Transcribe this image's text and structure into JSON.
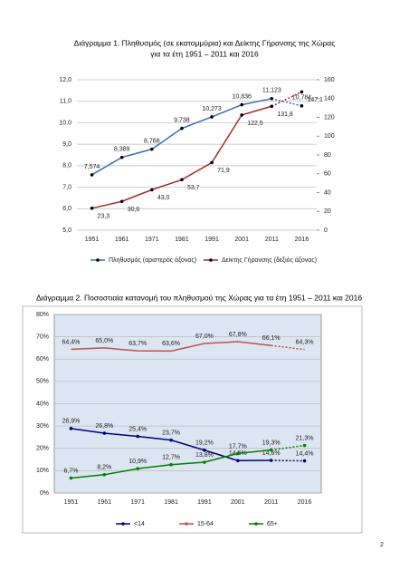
{
  "chart_data": [
    {
      "type": "line",
      "title": [
        "Διάγραμμα 1. Πληθυσμός (σε εκατομμύρια) και Δείκτης Γήρανσης της Χώρας",
        "για τα έτη 1951 – 2011 και 2016"
      ],
      "categories": [
        "1951",
        "1961",
        "1971",
        "1981",
        "1991",
        "2001",
        "2011",
        "2016"
      ],
      "ylim": [
        5,
        12
      ],
      "yticks": [
        {
          "value": 5,
          "label": "5,0"
        },
        {
          "value": 6,
          "label": "6,0"
        },
        {
          "value": 7,
          "label": "7,0"
        },
        {
          "value": 8,
          "label": "8,0"
        },
        {
          "value": 9,
          "label": "9,0"
        },
        {
          "value": 10,
          "label": "10,0"
        },
        {
          "value": 11,
          "label": "11,0"
        },
        {
          "value": 12,
          "label": "12,0"
        }
      ],
      "y2lim": [
        0,
        160
      ],
      "y2ticks": [
        0,
        20,
        40,
        60,
        80,
        100,
        120,
        140,
        160
      ],
      "grid": true,
      "dashed_last_segment": true,
      "legend": "bottom",
      "series": [
        {
          "name": "Πληθυσμός (αριστερός άξονας)",
          "color": "#3d6fb0",
          "values": [
            7.574,
            8.389,
            8.768,
            9.738,
            10.273,
            10.836,
            11.123,
            10.784
          ],
          "value_labels": [
            "7,574",
            "8,389",
            "8,768",
            "9,738",
            "10,273",
            "10,836",
            "11,123",
            "10,784"
          ]
        },
        {
          "name": "Δείκτης Γήρανσης (δεξιός άξονας)",
          "color": "#a52a2a",
          "axis": "y2",
          "values": [
            23.3,
            30.6,
            43.0,
            53.7,
            71.9,
            122.5,
            131.8,
            147.1
          ],
          "value_labels": [
            "23,3",
            "30,6",
            "43,0",
            "53,7",
            "71,9",
            "122,5",
            "131,8",
            "147,1"
          ]
        }
      ]
    },
    {
      "type": "line",
      "title": [
        "Διάγραμμα 2. Ποσοστιαία κατανομή του πληθυσμού της Χώρας για τα έτη 1951 – 2011 και 2016"
      ],
      "categories": [
        "1951",
        "1961",
        "1971",
        "1981",
        "1991",
        "2001",
        "2011",
        "2016"
      ],
      "ylim": [
        0,
        80
      ],
      "yticks": [
        {
          "value": 0,
          "label": "0%"
        },
        {
          "value": 10,
          "label": "10%"
        },
        {
          "value": 20,
          "label": "20%"
        },
        {
          "value": 30,
          "label": "30%"
        },
        {
          "value": 40,
          "label": "40%"
        },
        {
          "value": 50,
          "label": "50%"
        },
        {
          "value": 60,
          "label": "60%"
        },
        {
          "value": 70,
          "label": "70%"
        },
        {
          "value": 80,
          "label": "80%"
        }
      ],
      "grid": true,
      "dashed_last_segment": true,
      "legend": "bottom",
      "series": [
        {
          "name": "<14",
          "color": "#000080",
          "values": [
            28.9,
            26.8,
            25.4,
            23.7,
            19.2,
            14.5,
            14.6,
            14.4
          ],
          "value_labels": [
            "28,9%",
            "26,8%",
            "25,4%",
            "23,7%",
            "19,2%",
            "14,5%",
            "14,6%",
            "14,4%"
          ]
        },
        {
          "name": "15-64",
          "color": "#c0504d",
          "values": [
            64.4,
            65.0,
            63.7,
            63.6,
            67.0,
            67.8,
            66.1,
            64.3
          ],
          "value_labels": [
            "64,4%",
            "65,0%",
            "63,7%",
            "63,6%",
            "67,0%",
            "67,8%",
            "66,1%",
            "64,3%"
          ]
        },
        {
          "name": "65+",
          "color": "#008000",
          "values": [
            6.7,
            8.2,
            10.9,
            12.7,
            13.8,
            17.7,
            19.3,
            21.3
          ],
          "value_labels": [
            "6,7%",
            "8,2%",
            "10,9%",
            "12,7%",
            "13,8%",
            "17,7%",
            "19,3%",
            "21,3%"
          ]
        }
      ]
    }
  ],
  "page_number": "2"
}
